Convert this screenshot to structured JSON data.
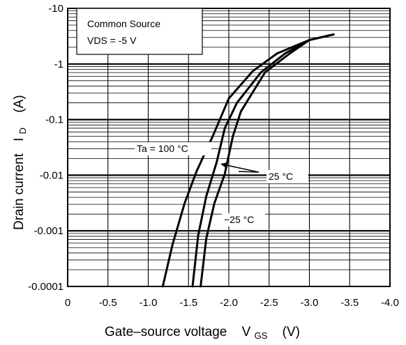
{
  "chart_data": {
    "type": "line",
    "title": "",
    "xlabel": "Gate–source voltage",
    "xlabel_symbol": "V",
    "xlabel_subscript": "GS",
    "xlabel_unit": "(V)",
    "ylabel": "Drain current",
    "ylabel_symbol": "I",
    "ylabel_subscript": "D",
    "ylabel_unit": "(A)",
    "xlim": [
      0,
      -4.0
    ],
    "ylim": [
      -0.0001,
      -10
    ],
    "yscale": "log",
    "grid": true,
    "x_ticks": [
      "0",
      "-0.5",
      "-1.0",
      "-1.5",
      "-2.0",
      "-2.5",
      "-3.0",
      "-3.5",
      "-4.0"
    ],
    "y_ticks": [
      "-10",
      "-1",
      "-0.1",
      "-0.01",
      "-0.001",
      "-0.0001"
    ],
    "conditions": {
      "line1": "Common Source",
      "line2": "VDS = -5 V"
    },
    "series": [
      {
        "name": "Ta = 100 °C",
        "x": [
          -1.18,
          -1.3,
          -1.45,
          -1.6,
          -1.8,
          -2.0,
          -2.3,
          -2.6,
          -3.0,
          -3.3
        ],
        "y": [
          -0.0001,
          -0.00056,
          -0.0031,
          -0.0118,
          -0.05,
          -0.24,
          -0.75,
          -1.55,
          -2.7,
          -3.4
        ]
      },
      {
        "name": "25 °C",
        "x": [
          -1.55,
          -1.62,
          -1.72,
          -1.85,
          -1.95,
          -2.1,
          -2.4,
          -2.7,
          -3.0,
          -3.3
        ],
        "y": [
          -0.0001,
          -0.00083,
          -0.0042,
          -0.0173,
          -0.07,
          -0.2,
          -0.71,
          -1.55,
          -2.7,
          -3.4
        ]
      },
      {
        "name": "−25 °C",
        "x": [
          -1.65,
          -1.72,
          -1.82,
          -1.95,
          -2.05,
          -2.15,
          -2.45,
          -2.75,
          -3.0,
          -3.3
        ],
        "y": [
          -0.0001,
          -0.00073,
          -0.0031,
          -0.0105,
          -0.05,
          -0.14,
          -0.71,
          -1.52,
          -2.7,
          -3.4
        ]
      }
    ],
    "annotations": {
      "ta100": "Ta = 100 °C",
      "t25": "25 °C",
      "tm25": "−25 °C"
    }
  }
}
